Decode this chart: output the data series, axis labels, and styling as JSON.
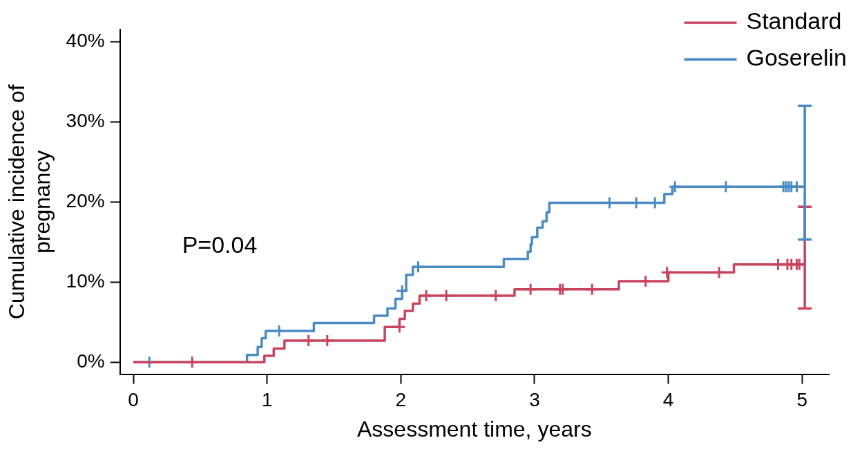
{
  "chart_data": {
    "type": "step",
    "xlabel": "Assessment time, years",
    "ylabel": "Cumulative incidence of pregnancy",
    "annotations": [
      "P=0.04"
    ],
    "xlim": [
      -0.1,
      5.2
    ],
    "xticks": [
      0,
      1,
      2,
      3,
      4,
      5
    ],
    "ylim": [
      -1.5,
      41.5
    ],
    "yticks": [
      {
        "value": 0,
        "label": "0%"
      },
      {
        "value": 10,
        "label": "10%"
      },
      {
        "value": 20,
        "label": "20%"
      },
      {
        "value": 30,
        "label": "30%"
      },
      {
        "value": 40,
        "label": "40%"
      }
    ],
    "grid": false,
    "legend": "top right",
    "line_style": "solid",
    "series": [
      {
        "name": "Standard",
        "type": "step",
        "color": "#c9435f",
        "x": [
          0,
          0.98,
          1.05,
          1.13,
          1.88,
          1.99,
          2.03,
          2.09,
          2.14,
          2.85,
          3.63,
          4.0,
          4.49,
          5.02
        ],
        "values": [
          0,
          0.8,
          1.7,
          2.7,
          4.4,
          5.4,
          6.4,
          7.3,
          8.3,
          9.1,
          10.1,
          11.2,
          12.2,
          12.2
        ],
        "errors": [
          null,
          null,
          null,
          null,
          null,
          null,
          null,
          null,
          null,
          null,
          null,
          null,
          null,
          [
            6.7,
            19.4
          ]
        ]
      },
      {
        "name": "Goserelin",
        "type": "step",
        "color": "#4b8bc3",
        "x": [
          0,
          0.85,
          0.93,
          0.96,
          0.99,
          1.35,
          1.8,
          1.9,
          1.96,
          2.01,
          2.04,
          2.09,
          2.77,
          2.95,
          2.97,
          2.98,
          3.02,
          3.06,
          3.09,
          3.11,
          3.97,
          4.03,
          5.02
        ],
        "values": [
          0,
          0.9,
          1.9,
          3.0,
          3.9,
          4.9,
          5.8,
          6.7,
          7.9,
          8.9,
          10.9,
          11.9,
          12.9,
          13.8,
          14.7,
          15.6,
          16.8,
          17.6,
          18.7,
          19.9,
          21.0,
          21.9,
          21.9
        ],
        "errors": [
          null,
          null,
          null,
          null,
          null,
          null,
          null,
          null,
          null,
          null,
          null,
          null,
          null,
          null,
          null,
          null,
          null,
          null,
          null,
          null,
          null,
          null,
          [
            15.3,
            32
          ]
        ]
      },
      {
        "type": "scatter",
        "marker": "cross",
        "color": "#c9435f",
        "x": [
          0.44,
          1.31,
          1.45,
          1.99,
          2.19,
          2.34,
          2.71,
          2.97,
          3.19,
          3.21,
          3.43,
          3.83,
          3.99,
          4.38,
          4.82,
          4.89,
          4.92,
          4.96,
          4.98
        ],
        "values": [
          0,
          2.7,
          2.7,
          4.4,
          8.3,
          8.3,
          8.3,
          9.1,
          9.1,
          9.1,
          9.1,
          10.1,
          11.2,
          11.2,
          12.2,
          12.2,
          12.2,
          12.2,
          12.2
        ]
      },
      {
        "type": "scatter",
        "marker": "cross",
        "color": "#4b8bc3",
        "x": [
          0.12,
          1.09,
          2.01,
          2.13,
          3.56,
          3.76,
          3.9,
          4.05,
          4.43,
          4.86,
          4.88,
          4.9,
          4.92,
          4.96
        ],
        "values": [
          0,
          3.9,
          8.9,
          11.9,
          19.9,
          19.9,
          19.9,
          21.9,
          21.9,
          21.9,
          21.9,
          21.9,
          21.9,
          21.9
        ]
      }
    ]
  }
}
